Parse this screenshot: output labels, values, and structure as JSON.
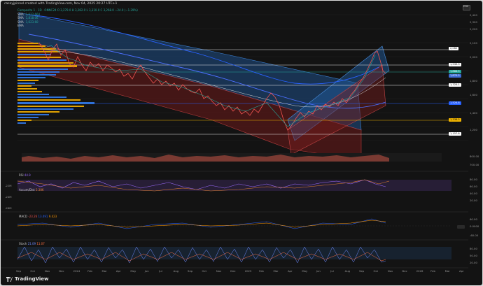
{
  "header": {
    "credit": "caseyjpinnel created with TradingView.com, Nov 04, 2025 20:27 UTC+1",
    "brand": "TradingView",
    "toolbar_right": "ENX"
  },
  "legend": {
    "symbol_line": "Composite 1 · 1D · ONNC24  O 3,279.0  H 3,282.0  L 3,310.0  C 3,268.0  −24.0 (−1.29%)",
    "lines": [
      {
        "label": "SMA",
        "value": "1,622.664"
      },
      {
        "label": "SMA",
        "value": "1,818.06"
      },
      {
        "label": "SMA",
        "value": "1,623.60"
      },
      {
        "label": "EMA",
        "value": ""
      }
    ]
  },
  "price_axis": {
    "ticks": [
      "2,400",
      "2,300",
      "2,200",
      "2,100",
      "2,000",
      "1,900",
      "1,800",
      "1,700",
      "1,600",
      "1,500",
      "1,400",
      "1,300",
      "1,200",
      "1,100"
    ],
    "tags": [
      {
        "text": "2,062",
        "color": "#ffffff",
        "text_color": "#111111"
      },
      {
        "text": "1,939.9",
        "color": "#ffffff",
        "text_color": "#111111"
      },
      {
        "text": "1,886.5",
        "color": "#26a69a",
        "text_color": "#ffffff"
      },
      {
        "text": "1,870.5",
        "color": "#3d6bd6",
        "text_color": "#ffffff"
      },
      {
        "text": "1,725.1",
        "color": "#ffffff",
        "text_color": "#111111"
      },
      {
        "text": "1,524.8",
        "color": "#2962ff",
        "text_color": "#ffffff"
      },
      {
        "text": "1,338.5",
        "color": "#f0b400",
        "text_color": "#111111"
      },
      {
        "text": "1,157.8",
        "color": "#ffffff",
        "text_color": "#111111"
      }
    ],
    "volume_ticks": [
      "800.00",
      "700.00"
    ],
    "rsi_ticks": [
      "80.00",
      "60.00",
      "40.00",
      "20.00"
    ],
    "macd_ticks": [
      "60.00",
      "0.0000",
      "-60.00"
    ],
    "stoch_ticks": [
      "80.00",
      "50.00",
      "20.00"
    ]
  },
  "time_axis": [
    "Sep",
    "Oct",
    "Nov",
    "Dec",
    "2024",
    "Feb",
    "Mar",
    "Apr",
    "May",
    "Jun",
    "Jul",
    "Aug",
    "Sep",
    "Oct",
    "Nov",
    "Dec",
    "2025",
    "Feb",
    "Mar",
    "Apr",
    "May",
    "Jun",
    "Jul",
    "Aug",
    "Sep",
    "Oct",
    "Nov",
    "Dec",
    "2026",
    "Feb",
    "Mar",
    "Apr"
  ],
  "indicators": {
    "rsi": {
      "label": "RSI",
      "value": "44.9"
    },
    "accum": {
      "label": "Accum/Dist",
      "value": "5.38K"
    },
    "macd": {
      "label": "MACD",
      "values": [
        "-23.26",
        "13.491",
        "9.423"
      ]
    },
    "stoch": {
      "label": "Stoch",
      "values": [
        "21.09",
        "11.07"
      ]
    }
  },
  "left_axis": {
    "ticks": [
      "-22M",
      "-24M",
      "-26M"
    ]
  },
  "colors": {
    "bull": "#26a69a",
    "bear": "#ef5350",
    "up_channel": "#2f6bb0",
    "down_channel": "#8a1e1e",
    "sma_blue": "#2962ff",
    "volume_profile_blue": "#2f71d8",
    "volume_profile_yellow": "#e0a100"
  }
}
